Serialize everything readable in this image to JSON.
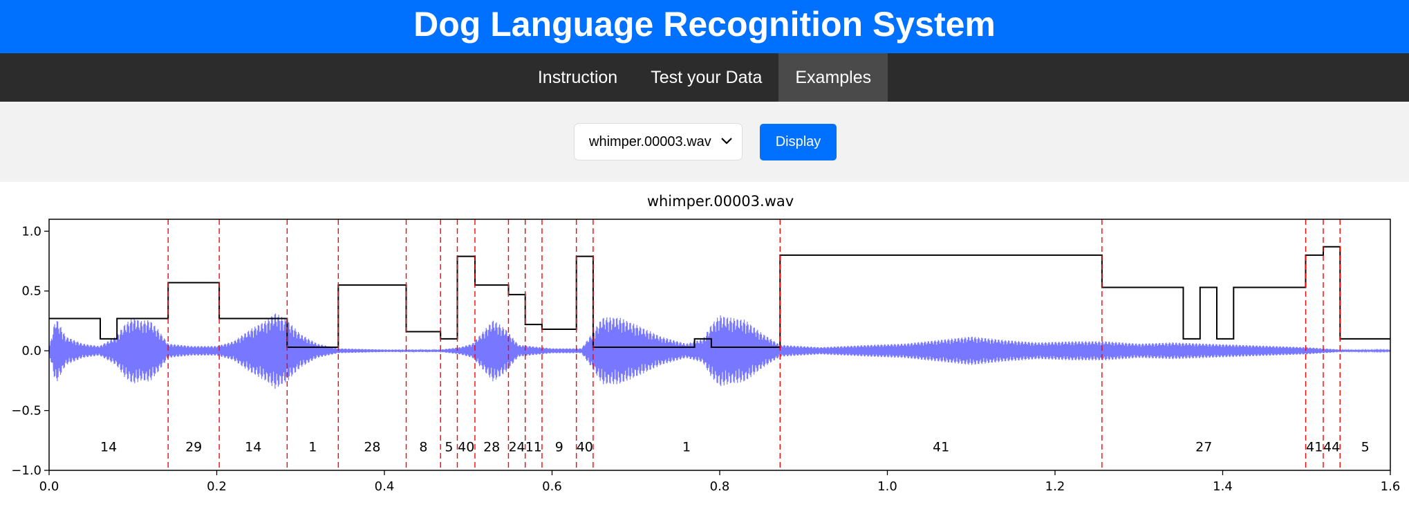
{
  "header": {
    "title": "Dog Language Recognition System"
  },
  "nav": {
    "items": [
      {
        "label": "Instruction",
        "active": false
      },
      {
        "label": "Test your Data",
        "active": false
      },
      {
        "label": "Examples",
        "active": true
      }
    ]
  },
  "controls": {
    "selected_file": "whimper.00003.wav",
    "display_label": "Display"
  },
  "chart_data": {
    "type": "line",
    "title": "whimper.00003.wav",
    "xlim": [
      0.0,
      1.6
    ],
    "ylim": [
      -1.0,
      1.1
    ],
    "xticks": [
      0.0,
      0.2,
      0.4,
      0.6,
      0.8,
      1.0,
      1.2,
      1.4,
      1.6
    ],
    "xtick_labels": [
      "0.0",
      "0.2",
      "0.4",
      "0.6",
      "0.8",
      "1.0",
      "1.2",
      "1.4",
      "1.6"
    ],
    "yticks": [
      1.0,
      0.5,
      0.0,
      -0.5,
      -1.0
    ],
    "ytick_labels": [
      "1.0",
      "0.5",
      "0.0",
      "−0.5",
      "−1.0"
    ],
    "waveform_color": "#7777ff",
    "boundary_color": "#ff0000",
    "step_color": "#000000",
    "boundaries": [
      0.142,
      0.203,
      0.284,
      0.345,
      0.426,
      0.467,
      0.487,
      0.508,
      0.548,
      0.568,
      0.588,
      0.629,
      0.649,
      0.872,
      1.256,
      1.499,
      1.52,
      1.54
    ],
    "segments": [
      {
        "x0": 0.0,
        "x1": 0.142,
        "label": "14"
      },
      {
        "x0": 0.142,
        "x1": 0.203,
        "label": "29"
      },
      {
        "x0": 0.203,
        "x1": 0.284,
        "label": "14"
      },
      {
        "x0": 0.284,
        "x1": 0.345,
        "label": "1"
      },
      {
        "x0": 0.345,
        "x1": 0.426,
        "label": "28"
      },
      {
        "x0": 0.426,
        "x1": 0.467,
        "label": "8"
      },
      {
        "x0": 0.467,
        "x1": 0.487,
        "label": "5"
      },
      {
        "x0": 0.487,
        "x1": 0.508,
        "label": "40"
      },
      {
        "x0": 0.508,
        "x1": 0.548,
        "label": "28"
      },
      {
        "x0": 0.548,
        "x1": 0.568,
        "label": "24"
      },
      {
        "x0": 0.568,
        "x1": 0.588,
        "label": "11"
      },
      {
        "x0": 0.588,
        "x1": 0.629,
        "label": "9"
      },
      {
        "x0": 0.629,
        "x1": 0.649,
        "label": "40"
      },
      {
        "x0": 0.649,
        "x1": 0.872,
        "label": "1"
      },
      {
        "x0": 0.872,
        "x1": 1.256,
        "label": "41"
      },
      {
        "x0": 1.256,
        "x1": 1.499,
        "label": "27"
      },
      {
        "x0": 1.499,
        "x1": 1.52,
        "label": "41"
      },
      {
        "x0": 1.52,
        "x1": 1.54,
        "label": "44"
      },
      {
        "x0": 1.54,
        "x1": 1.6,
        "label": "5"
      }
    ],
    "step_line": [
      [
        0.0,
        0.27
      ],
      [
        0.061,
        0.27
      ],
      [
        0.061,
        0.1
      ],
      [
        0.081,
        0.1
      ],
      [
        0.081,
        0.27
      ],
      [
        0.142,
        0.27
      ],
      [
        0.142,
        0.57
      ],
      [
        0.203,
        0.57
      ],
      [
        0.203,
        0.27
      ],
      [
        0.284,
        0.27
      ],
      [
        0.284,
        0.03
      ],
      [
        0.345,
        0.03
      ],
      [
        0.345,
        0.55
      ],
      [
        0.426,
        0.55
      ],
      [
        0.426,
        0.16
      ],
      [
        0.467,
        0.16
      ],
      [
        0.467,
        0.1
      ],
      [
        0.487,
        0.1
      ],
      [
        0.487,
        0.79
      ],
      [
        0.508,
        0.79
      ],
      [
        0.508,
        0.55
      ],
      [
        0.548,
        0.55
      ],
      [
        0.548,
        0.47
      ],
      [
        0.568,
        0.47
      ],
      [
        0.568,
        0.22
      ],
      [
        0.588,
        0.22
      ],
      [
        0.588,
        0.18
      ],
      [
        0.629,
        0.18
      ],
      [
        0.629,
        0.79
      ],
      [
        0.649,
        0.79
      ],
      [
        0.649,
        0.03
      ],
      [
        0.77,
        0.03
      ],
      [
        0.77,
        0.1
      ],
      [
        0.79,
        0.1
      ],
      [
        0.79,
        0.03
      ],
      [
        0.872,
        0.03
      ],
      [
        0.872,
        0.8
      ],
      [
        1.256,
        0.8
      ],
      [
        1.256,
        0.53
      ],
      [
        1.353,
        0.53
      ],
      [
        1.353,
        0.1
      ],
      [
        1.373,
        0.1
      ],
      [
        1.373,
        0.53
      ],
      [
        1.393,
        0.53
      ],
      [
        1.393,
        0.1
      ],
      [
        1.413,
        0.1
      ],
      [
        1.413,
        0.53
      ],
      [
        1.499,
        0.53
      ],
      [
        1.499,
        0.8
      ],
      [
        1.52,
        0.8
      ],
      [
        1.52,
        0.87
      ],
      [
        1.54,
        0.87
      ],
      [
        1.54,
        0.1
      ],
      [
        1.6,
        0.1
      ]
    ],
    "waveform_envelope": [
      [
        0.0,
        0.02
      ],
      [
        0.008,
        0.28
      ],
      [
        0.02,
        0.12
      ],
      [
        0.04,
        0.06
      ],
      [
        0.06,
        0.04
      ],
      [
        0.07,
        0.08
      ],
      [
        0.08,
        0.12
      ],
      [
        0.09,
        0.22
      ],
      [
        0.1,
        0.28
      ],
      [
        0.11,
        0.25
      ],
      [
        0.12,
        0.26
      ],
      [
        0.13,
        0.18
      ],
      [
        0.142,
        0.06
      ],
      [
        0.17,
        0.04
      ],
      [
        0.2,
        0.04
      ],
      [
        0.22,
        0.08
      ],
      [
        0.24,
        0.18
      ],
      [
        0.26,
        0.26
      ],
      [
        0.27,
        0.32
      ],
      [
        0.285,
        0.25
      ],
      [
        0.3,
        0.14
      ],
      [
        0.32,
        0.06
      ],
      [
        0.345,
        0.02
      ],
      [
        0.4,
        0.01
      ],
      [
        0.467,
        0.01
      ],
      [
        0.49,
        0.03
      ],
      [
        0.505,
        0.06
      ],
      [
        0.52,
        0.18
      ],
      [
        0.53,
        0.26
      ],
      [
        0.545,
        0.18
      ],
      [
        0.56,
        0.05
      ],
      [
        0.6,
        0.02
      ],
      [
        0.635,
        0.02
      ],
      [
        0.648,
        0.15
      ],
      [
        0.66,
        0.28
      ],
      [
        0.68,
        0.28
      ],
      [
        0.7,
        0.22
      ],
      [
        0.73,
        0.12
      ],
      [
        0.76,
        0.06
      ],
      [
        0.78,
        0.1
      ],
      [
        0.79,
        0.22
      ],
      [
        0.8,
        0.3
      ],
      [
        0.81,
        0.28
      ],
      [
        0.83,
        0.26
      ],
      [
        0.85,
        0.15
      ],
      [
        0.872,
        0.05
      ],
      [
        0.92,
        0.03
      ],
      [
        0.98,
        0.05
      ],
      [
        1.02,
        0.06
      ],
      [
        1.06,
        0.09
      ],
      [
        1.1,
        0.12
      ],
      [
        1.14,
        0.09
      ],
      [
        1.18,
        0.07
      ],
      [
        1.22,
        0.08
      ],
      [
        1.26,
        0.08
      ],
      [
        1.3,
        0.06
      ],
      [
        1.34,
        0.07
      ],
      [
        1.38,
        0.06
      ],
      [
        1.42,
        0.05
      ],
      [
        1.46,
        0.04
      ],
      [
        1.5,
        0.03
      ],
      [
        1.54,
        0.01
      ],
      [
        1.6,
        0.005
      ]
    ]
  }
}
